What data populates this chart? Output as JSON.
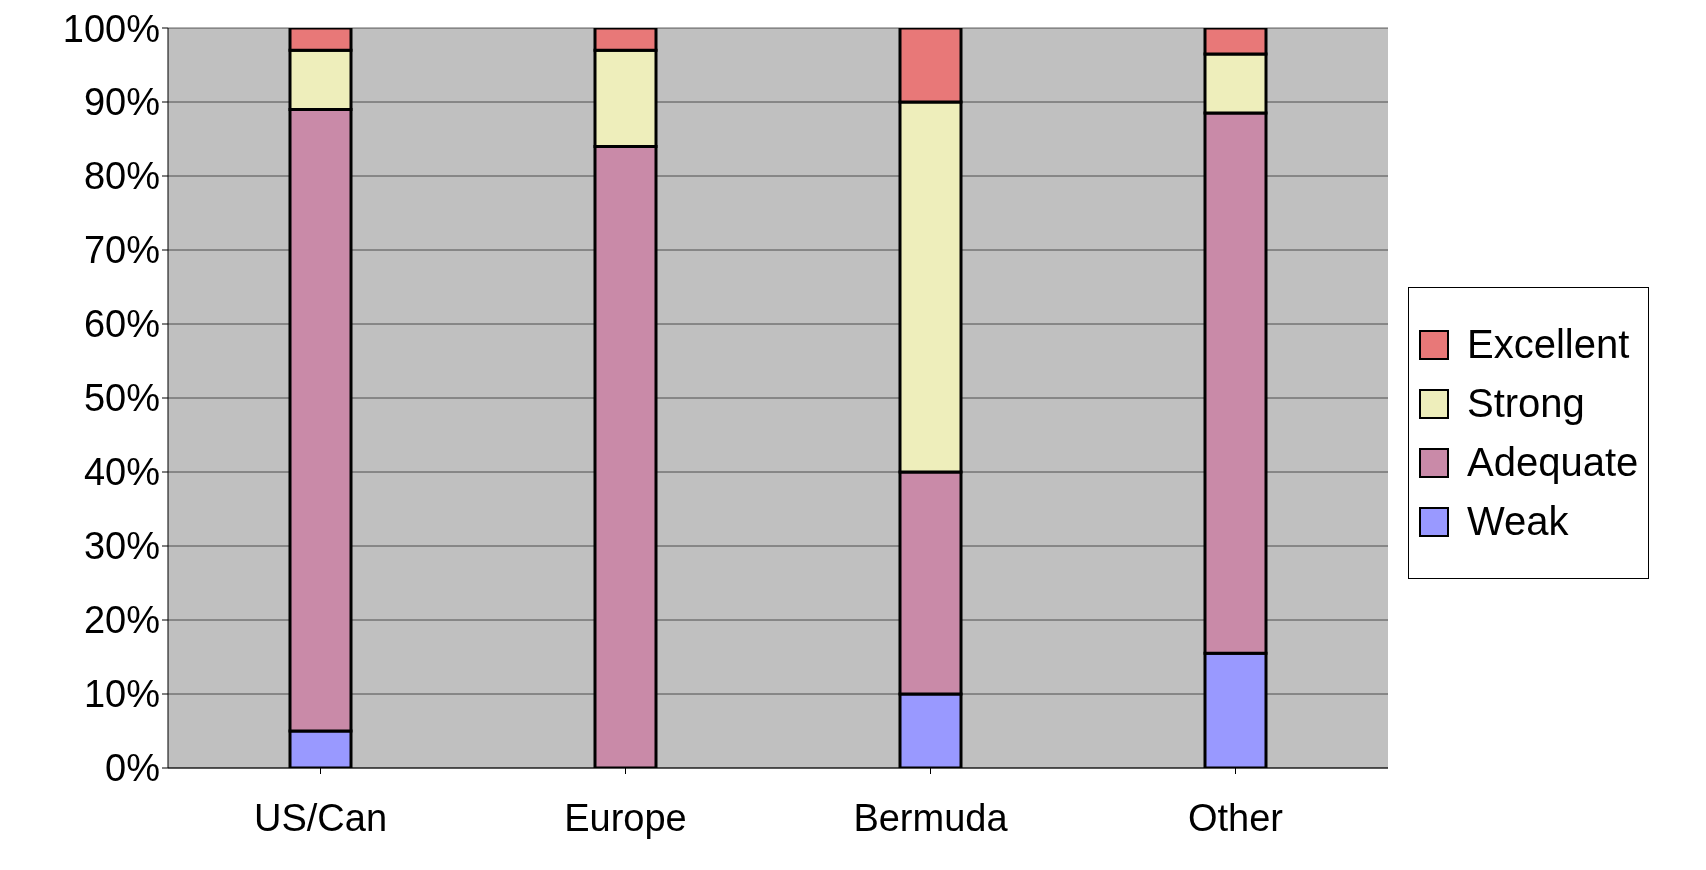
{
  "chart_data": {
    "type": "bar",
    "stacked": true,
    "categories": [
      "US/Can",
      "Europe",
      "Bermuda",
      "Other"
    ],
    "series": [
      {
        "name": "Weak",
        "color": "#9999ff",
        "values": [
          5,
          0,
          10,
          15.5
        ]
      },
      {
        "name": "Adequate",
        "color": "#c98aa8",
        "values": [
          84,
          84,
          30,
          73
        ]
      },
      {
        "name": "Strong",
        "color": "#eeeebb",
        "values": [
          8,
          13,
          50,
          8
        ]
      },
      {
        "name": "Excellent",
        "color": "#e87878",
        "values": [
          3,
          3,
          10,
          3.5
        ]
      }
    ],
    "ylim": [
      0,
      100
    ],
    "yticks": [
      {
        "value": 0,
        "label": "0%"
      },
      {
        "value": 10,
        "label": "10%"
      },
      {
        "value": 20,
        "label": "20%"
      },
      {
        "value": 30,
        "label": "30%"
      },
      {
        "value": 40,
        "label": "40%"
      },
      {
        "value": 50,
        "label": "50%"
      },
      {
        "value": 60,
        "label": "60%"
      },
      {
        "value": 70,
        "label": "70%"
      },
      {
        "value": 80,
        "label": "80%"
      },
      {
        "value": 90,
        "label": "90%"
      },
      {
        "value": 100,
        "label": "100%"
      }
    ],
    "grid": "y",
    "legend": "right"
  }
}
